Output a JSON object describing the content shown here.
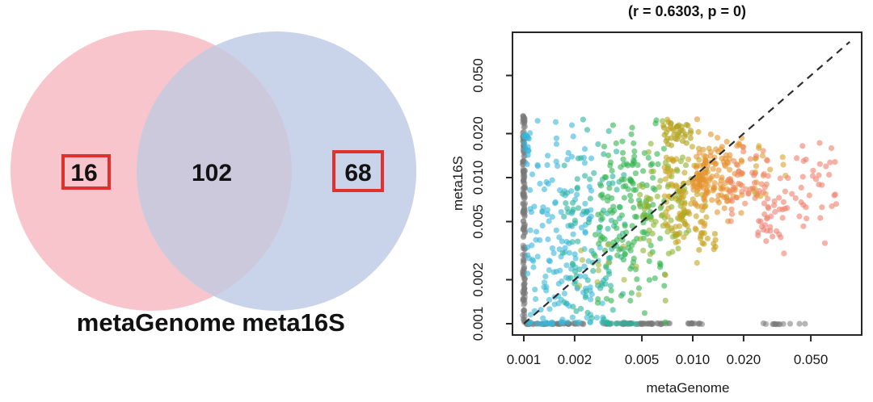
{
  "venn": {
    "left_label": "metaGenome",
    "right_label": "meta16S",
    "left_only_count": "16",
    "overlap_count": "102",
    "right_only_count": "68",
    "left_fill": "#f8c5cc",
    "right_fill": "#c9d3e9",
    "overlap_fill": "#cdc9dc",
    "highlight_box_color": "#e0312d",
    "text_color": "#121212"
  },
  "chart_data": {
    "type": "scatter",
    "title": "(r = 0.6303, p = 0)",
    "xlabel": "metaGenome",
    "ylabel": "meta16S",
    "x_scale": "log10",
    "y_scale": "log10",
    "xlim": [
      0.00086,
      0.1
    ],
    "ylim": [
      0.00086,
      0.099
    ],
    "grid": false,
    "legend": "none",
    "box": true,
    "axis_color": "#262626",
    "correlation": {
      "r": 0.6303,
      "p": 0
    },
    "detection_floor": 0.001,
    "identity_line": {
      "style": "dashed",
      "color": "#2e2e2e",
      "x_start": 0.001,
      "x_end": 0.085
    },
    "x_ticks": [
      {
        "value": 0.001,
        "label": "0.001"
      },
      {
        "value": 0.002,
        "label": "0.002"
      },
      {
        "value": 0.005,
        "label": "0.005"
      },
      {
        "value": 0.01,
        "label": "0.010"
      },
      {
        "value": 0.02,
        "label": "0.020"
      },
      {
        "value": 0.05,
        "label": "0.050"
      }
    ],
    "y_ticks": [
      {
        "value": 0.001,
        "label": "0.001"
      },
      {
        "value": 0.002,
        "label": "0.002"
      },
      {
        "value": 0.005,
        "label": "0.005"
      },
      {
        "value": 0.01,
        "label": "0.010"
      },
      {
        "value": 0.02,
        "label": "0.020"
      },
      {
        "value": 0.05,
        "label": "0.050"
      }
    ],
    "point_style": {
      "radius": 3.6,
      "default_opacity": 0.6
    },
    "point_clusters": {
      "description": "Approximate reconstruction of the dense point cloud (log10 coordinates). Points are colored by metaGenome abundance from cyan (low) through teal, green, yellow-green, olive, gold, orange to salmon (high). Grey points sit on the 0.001 detection-floor column (left) and row (bottom).",
      "clusters": [
        {
          "name": "floor-column-left",
          "n": 160,
          "lx": [
            -3.006,
            -2.992
          ],
          "ly": [
            -3.0,
            -1.555
          ],
          "color": "#787878",
          "alpha": 0.55
        },
        {
          "name": "floor-row-a",
          "n": 46,
          "lx": [
            -2.985,
            -2.63
          ],
          "ly": [
            -3.004,
            -2.996
          ],
          "color": "#787878",
          "alpha": 0.55
        },
        {
          "name": "floor-row-b",
          "n": 48,
          "lx": [
            -2.54,
            -2.11
          ],
          "ly": [
            -3.004,
            -2.996
          ],
          "color": "#787878",
          "alpha": 0.55
        },
        {
          "name": "floor-row-c",
          "n": 12,
          "lx": [
            -2.03,
            -1.94
          ],
          "ly": [
            -3.004,
            -2.996
          ],
          "color": "#787878",
          "alpha": 0.55
        },
        {
          "name": "floor-row-d",
          "n": 11,
          "lx": [
            -1.6,
            -1.42
          ],
          "ly": [
            -3.004,
            -2.996
          ],
          "color": "#787878",
          "alpha": 0.55
        },
        {
          "name": "floor-row-e",
          "n": 2,
          "lx": [
            -1.37,
            -1.33
          ],
          "ly": [
            -3.004,
            -2.996
          ],
          "color": "#787878",
          "alpha": 0.55
        },
        {
          "name": "cyan-main",
          "n": 120,
          "lx": [
            -2.985,
            -2.6
          ],
          "ly_mean": -2.42,
          "ly_sd": 0.4,
          "color": "#38b6db",
          "alpha": 0.6
        },
        {
          "name": "cyan-low",
          "n": 50,
          "lx": [
            -2.975,
            -2.5
          ],
          "ly_mean": -2.82,
          "ly_sd": 0.17,
          "color": "#3cb9d3",
          "alpha": 0.6
        },
        {
          "name": "cyan-on-axis",
          "n": 14,
          "lx": [
            -3.0,
            -2.97
          ],
          "ly_mean": -1.74,
          "ly_sd": 0.07,
          "color": "#35b5dc",
          "alpha": 0.65
        },
        {
          "name": "cyan-floor-row",
          "n": 8,
          "lx": [
            -2.97,
            -2.8
          ],
          "ly": [
            -3.002,
            -2.998
          ],
          "color": "#38b6db",
          "alpha": 0.6
        },
        {
          "name": "teal",
          "n": 95,
          "lx": [
            -2.78,
            -2.4
          ],
          "ly_mean": -2.38,
          "ly_sd": 0.32,
          "color": "#2ab49b",
          "alpha": 0.6
        },
        {
          "name": "teal-floor-row",
          "n": 10,
          "lx": [
            -2.52,
            -2.3
          ],
          "ly": [
            -3.002,
            -2.998
          ],
          "color": "#2ab49b",
          "alpha": 0.6
        },
        {
          "name": "green",
          "n": 160,
          "lx": [
            -2.58,
            -2.16
          ],
          "ly_mean": -2.25,
          "ly_sd": 0.3,
          "color": "#33b450",
          "alpha": 0.6
        },
        {
          "name": "olive-outliers",
          "n": 12,
          "lx": [
            -2.72,
            -2.3
          ],
          "ly_mean": -2.6,
          "ly_sd": 0.18,
          "color": "#a8b43a",
          "alpha": 0.6
        },
        {
          "name": "yellow-green",
          "n": 85,
          "lx": [
            -2.32,
            -2.02
          ],
          "ly_mean": -2.18,
          "ly_sd": 0.22,
          "color": "#8db32e",
          "alpha": 0.6
        },
        {
          "name": "olive-top-cluster",
          "n": 36,
          "lx": [
            -2.18,
            -2.0
          ],
          "ly_mean": -1.7,
          "ly_sd": 0.045,
          "color": "#b2a522",
          "alpha": 0.65
        },
        {
          "name": "gold",
          "n": 100,
          "lx": [
            -2.17,
            -1.9
          ],
          "ly_mean": -2.12,
          "ly_sd": 0.19,
          "color": "#c7a41f",
          "alpha": 0.6
        },
        {
          "name": "gold-low-blob",
          "n": 14,
          "lx": [
            -1.97,
            -1.86
          ],
          "ly_mean": -2.44,
          "ly_sd": 0.05,
          "color": "#c7a41f",
          "alpha": 0.65
        },
        {
          "name": "orange",
          "n": 135,
          "lx": [
            -2.0,
            -1.7
          ],
          "ly_mean": -1.97,
          "ly_sd": 0.13,
          "color": "#e5922d",
          "alpha": 0.6
        },
        {
          "name": "gold-right",
          "n": 18,
          "lx": [
            -1.64,
            -1.45
          ],
          "ly_mean": -1.95,
          "ly_sd": 0.1,
          "color": "#d5a42a",
          "alpha": 0.6
        },
        {
          "name": "orange-salmon",
          "n": 45,
          "lx": [
            -1.8,
            -1.55
          ],
          "ly_mean": -2.08,
          "ly_sd": 0.13,
          "color": "#ee8560",
          "alpha": 0.6
        },
        {
          "name": "salmon-mid",
          "n": 26,
          "lx": [
            -1.64,
            -1.4
          ],
          "ly_mean": -2.18,
          "ly_sd": 0.14,
          "color": "#f0806e",
          "alpha": 0.6
        },
        {
          "name": "salmon-low-cluster",
          "n": 15,
          "lx": [
            -1.63,
            -1.47
          ],
          "ly_mean": -2.34,
          "ly_sd": 0.05,
          "color": "#ef7e72",
          "alpha": 0.6
        },
        {
          "name": "salmon-right",
          "n": 34,
          "lx": [
            -1.4,
            -1.15
          ],
          "ly_mean": -2.07,
          "ly_sd": 0.15,
          "color": "#f07e6d",
          "alpha": 0.6
        }
      ]
    }
  }
}
